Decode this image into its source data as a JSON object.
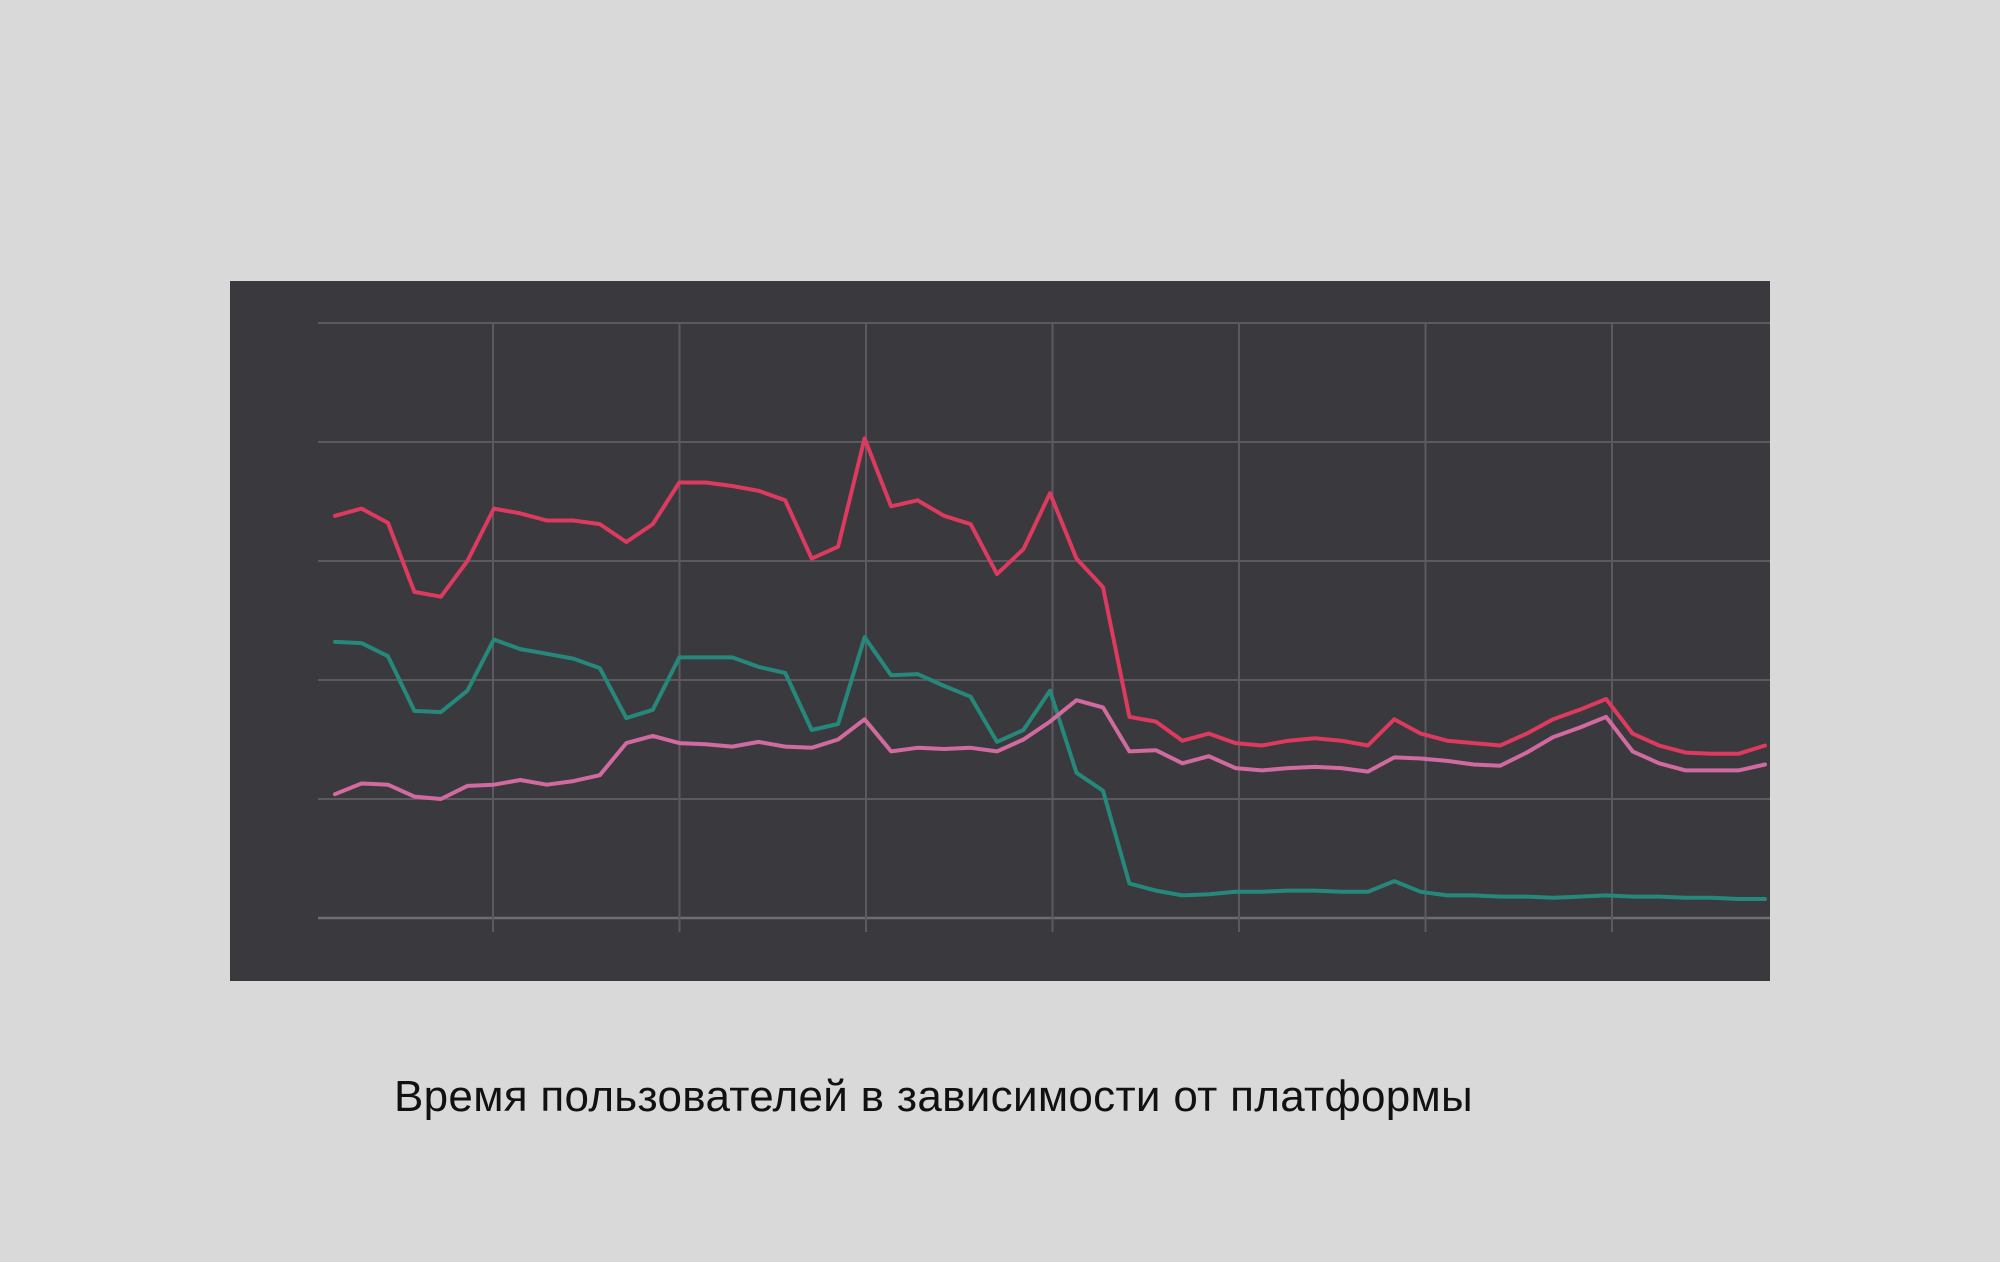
{
  "caption": "Время пользователей в зависимости от платформы",
  "chart_data": {
    "type": "line",
    "title": "",
    "xlabel": "",
    "ylabel": "",
    "x_ticks_shown": false,
    "y_ticks_shown": false,
    "grid": true,
    "background": "#3a393e",
    "grid_color": "#5b5a60",
    "xlim": [
      0,
      54
    ],
    "ylim": [
      0,
      50
    ],
    "x": [
      0,
      1,
      2,
      3,
      4,
      5,
      6,
      7,
      8,
      9,
      10,
      11,
      12,
      13,
      14,
      15,
      16,
      17,
      18,
      19,
      20,
      21,
      22,
      23,
      24,
      25,
      26,
      27,
      28,
      29,
      30,
      31,
      32,
      33,
      34,
      35,
      36,
      37,
      38,
      39,
      40,
      41,
      42,
      43,
      44,
      45,
      46,
      47,
      48,
      49,
      50,
      51,
      52,
      53,
      54
    ],
    "series": [
      {
        "color": "#dc3a5e",
        "values": [
          33.8,
          34.4,
          33.2,
          27.4,
          27.0,
          30.0,
          34.4,
          34.0,
          33.4,
          33.4,
          33.1,
          31.6,
          33.1,
          36.6,
          36.6,
          36.3,
          35.9,
          35.1,
          30.2,
          31.2,
          40.3,
          34.6,
          35.1,
          33.8,
          33.1,
          28.9,
          31.0,
          35.7,
          30.2,
          27.8,
          16.9,
          16.5,
          14.9,
          15.5,
          14.7,
          14.5,
          14.9,
          15.1,
          14.9,
          14.5,
          16.7,
          15.5,
          14.9,
          14.7,
          14.5,
          15.5,
          16.7,
          17.5,
          18.4,
          15.5,
          14.5,
          13.9,
          13.8,
          13.8,
          14.5
        ]
      },
      {
        "color": "#26887a",
        "values": [
          23.2,
          23.1,
          22.0,
          17.4,
          17.3,
          19.1,
          23.4,
          22.6,
          22.2,
          21.8,
          21.0,
          16.8,
          17.5,
          21.9,
          21.9,
          21.9,
          21.1,
          20.6,
          15.8,
          16.3,
          23.6,
          20.4,
          20.5,
          19.5,
          18.6,
          14.8,
          15.8,
          19.1,
          12.2,
          10.7,
          2.9,
          2.3,
          1.9,
          2.0,
          2.2,
          2.2,
          2.3,
          2.3,
          2.2,
          2.2,
          3.1,
          2.2,
          1.9,
          1.9,
          1.8,
          1.8,
          1.7,
          1.8,
          1.9,
          1.8,
          1.8,
          1.7,
          1.7,
          1.6,
          1.6
        ]
      },
      {
        "color": "#d16a9e",
        "values": [
          10.4,
          11.3,
          11.2,
          10.2,
          10.0,
          11.1,
          11.2,
          11.6,
          11.2,
          11.5,
          12.0,
          14.7,
          15.3,
          14.7,
          14.6,
          14.4,
          14.8,
          14.4,
          14.3,
          15.0,
          16.7,
          14.0,
          14.3,
          14.2,
          14.3,
          14.0,
          15.0,
          16.5,
          18.3,
          17.7,
          14.0,
          14.1,
          13.0,
          13.6,
          12.6,
          12.4,
          12.6,
          12.7,
          12.6,
          12.3,
          13.5,
          13.4,
          13.2,
          12.9,
          12.8,
          13.9,
          15.2,
          16.0,
          16.9,
          14.0,
          13.0,
          12.4,
          12.4,
          12.4,
          12.9
        ]
      }
    ]
  }
}
